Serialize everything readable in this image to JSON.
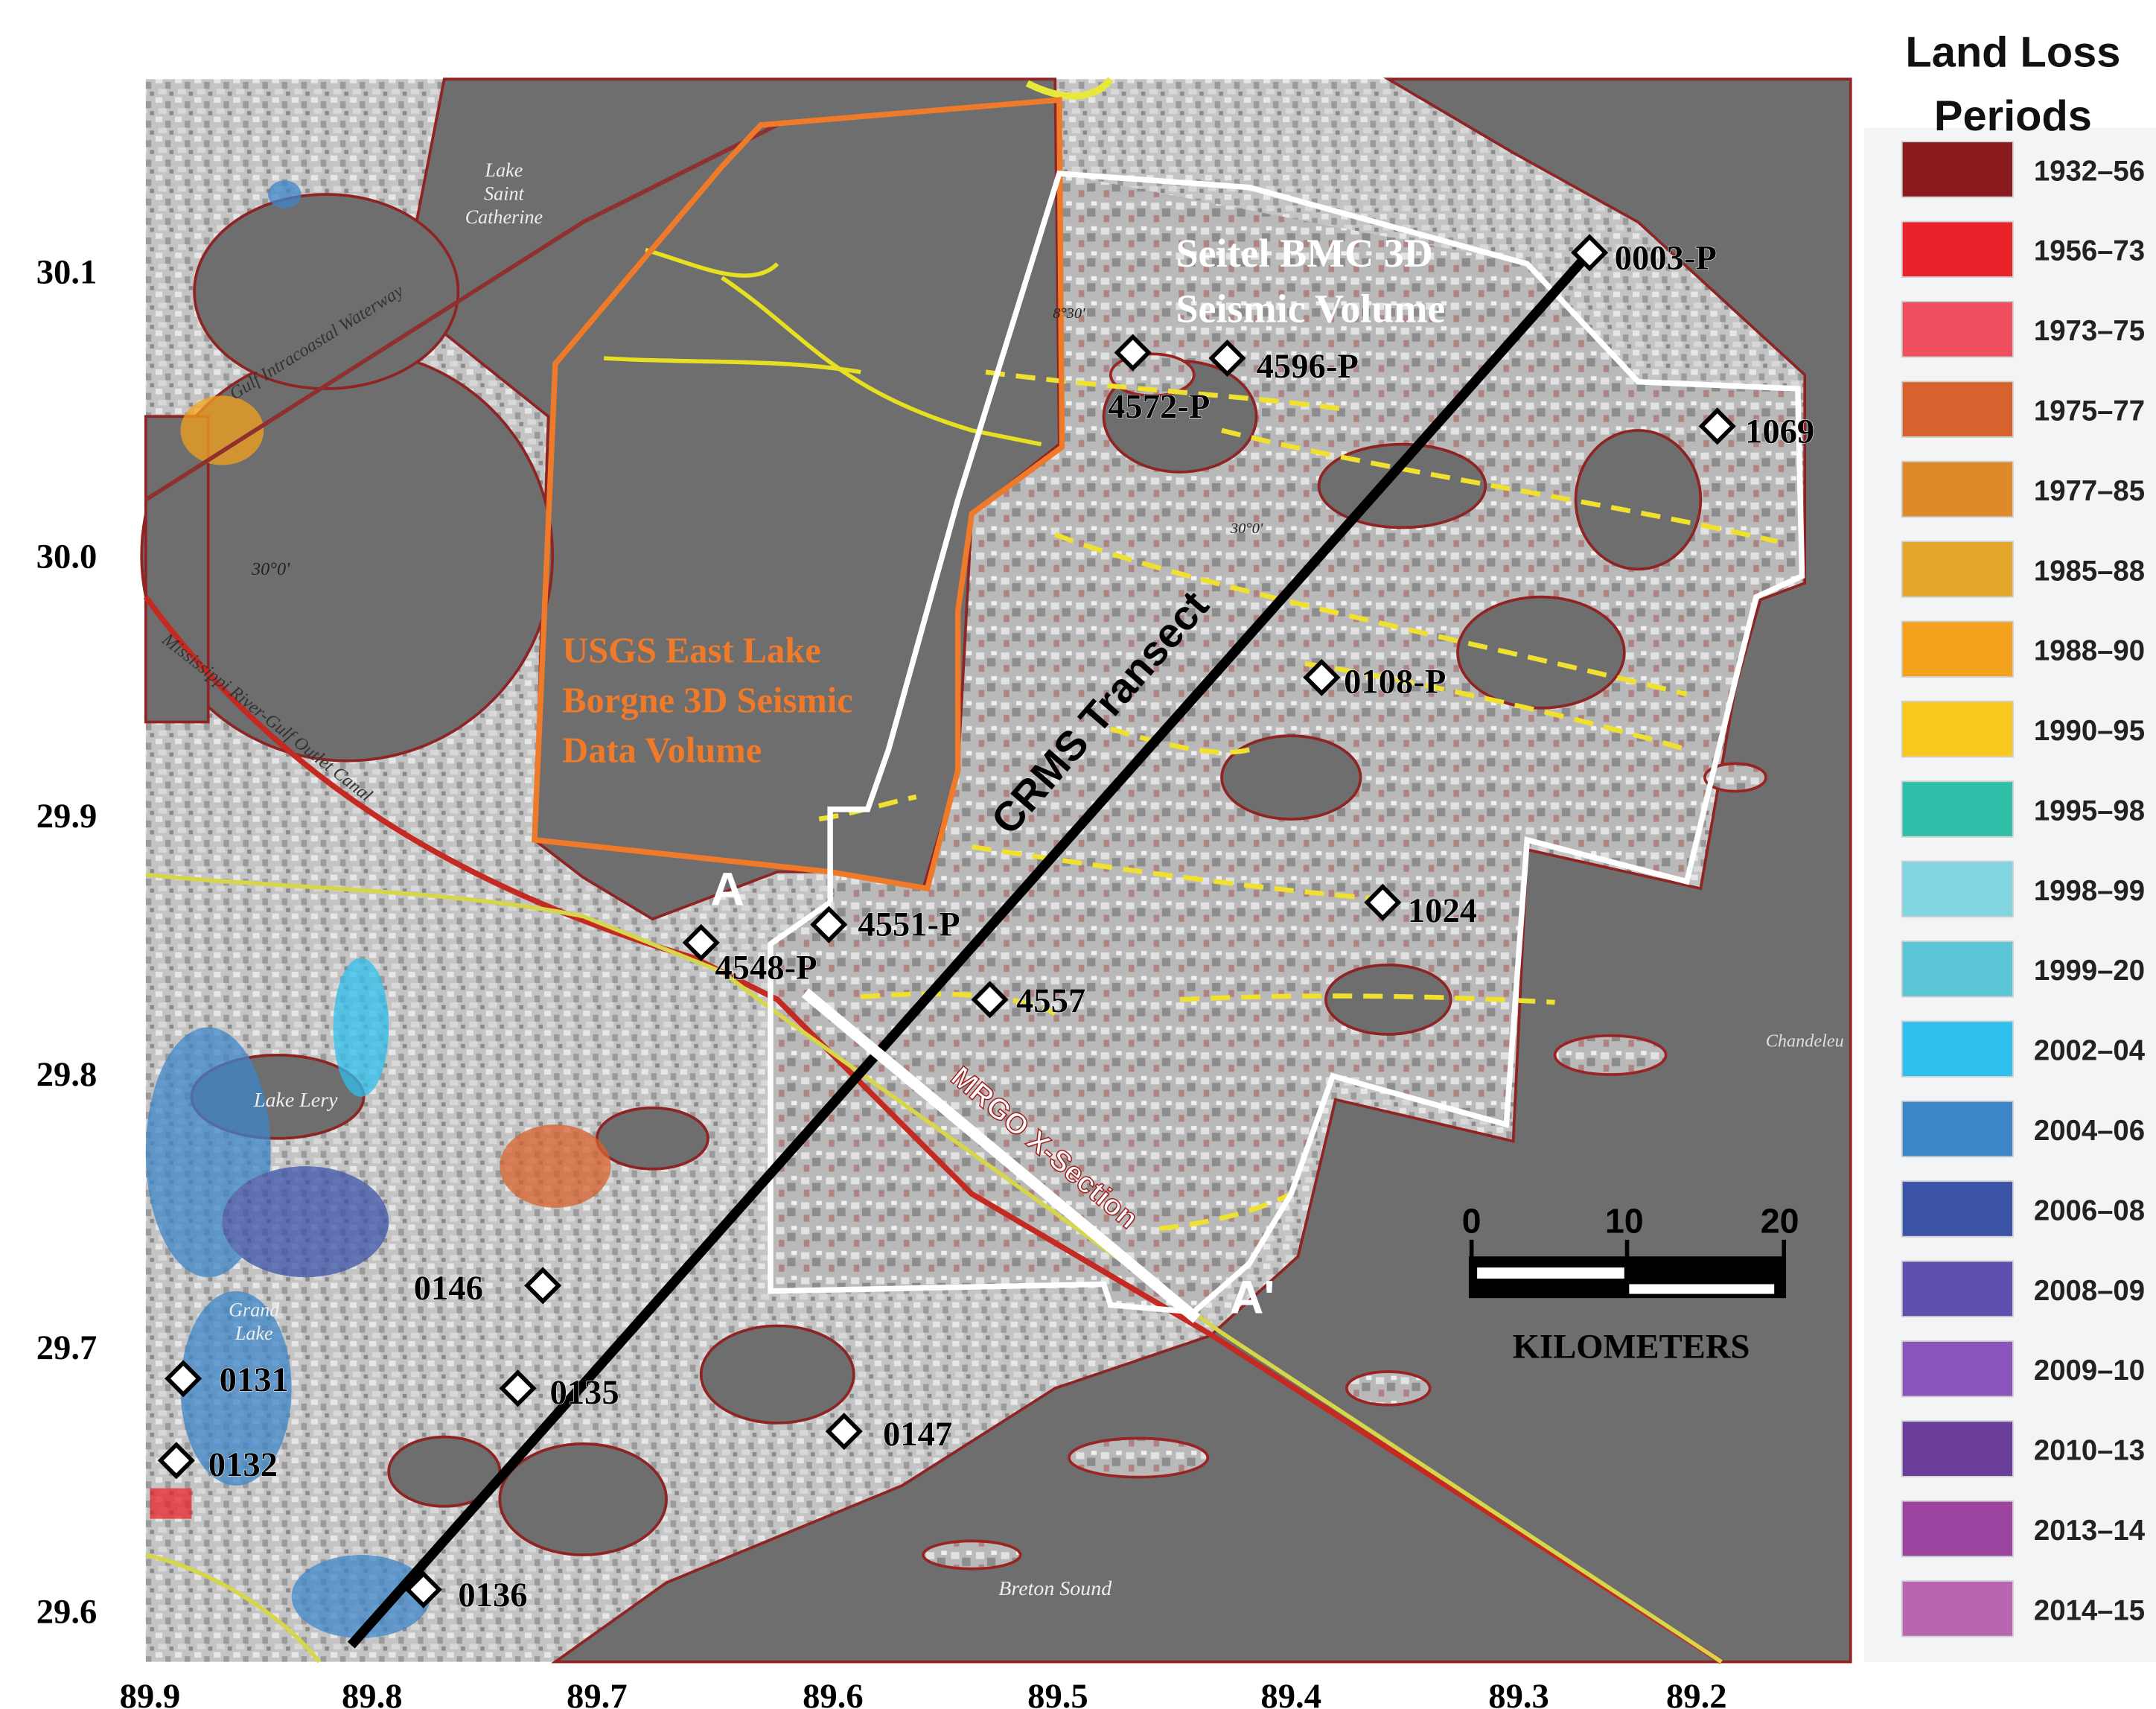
{
  "legend": {
    "title": [
      "Land Loss",
      "Periods"
    ],
    "items": [
      {
        "label": "1932–56",
        "color": "#8b1a1e"
      },
      {
        "label": "1956–73",
        "color": "#e8242a"
      },
      {
        "label": "1973–75",
        "color": "#ee4e5e"
      },
      {
        "label": "1975–77",
        "color": "#d8622e"
      },
      {
        "label": "1977–85",
        "color": "#de8a2a"
      },
      {
        "label": "1985–88",
        "color": "#e4a62c"
      },
      {
        "label": "1988–90",
        "color": "#f4a21e"
      },
      {
        "label": "1990–95",
        "color": "#f8c81c"
      },
      {
        "label": "1995–98",
        "color": "#2fbfa8"
      },
      {
        "label": "1998–99",
        "color": "#82d4e0"
      },
      {
        "label": "1999–20",
        "color": "#5cc6d6"
      },
      {
        "label": "2002–04",
        "color": "#2fc0ee"
      },
      {
        "label": "2004–06",
        "color": "#3d86c8"
      },
      {
        "label": "2006–08",
        "color": "#3c54a8"
      },
      {
        "label": "2008–09",
        "color": "#5e50b0"
      },
      {
        "label": "2009–10",
        "color": "#8a56bc"
      },
      {
        "label": "2010–13",
        "color": "#6b3e9b"
      },
      {
        "label": "2013–14",
        "color": "#9c44a0"
      },
      {
        "label": "2014–15",
        "color": "#b866b0"
      }
    ]
  },
  "axes": {
    "latitude_labels": [
      "30.1",
      "30.0",
      "29.9",
      "29.8",
      "29.7",
      "29.6"
    ],
    "longitude_labels": [
      "89.9",
      "89.8",
      "89.7",
      "89.6",
      "89.5",
      "89.4",
      "89.3",
      "89.2"
    ]
  },
  "stations": [
    "0003-P",
    "4596-P",
    "4572-P",
    "1069",
    "0108-P",
    "1024",
    "4551-P",
    "4548-P",
    "4557",
    "0146",
    "0131",
    "0135",
    "0147",
    "0132",
    "0136"
  ],
  "transects": {
    "crms": "CRMS Transect",
    "mrgo": "MRGO X-Section",
    "start": "A",
    "end": "A'"
  },
  "survey_areas": {
    "seitel": [
      "Seitel BMC 3D",
      "Seismic Volume"
    ],
    "usgs": [
      "USGS East Lake",
      "Borgne 3D Seismic",
      "Data Volume"
    ]
  },
  "place_names": [
    {
      "lines": [
        "Lake",
        "Saint",
        "Catherine"
      ]
    },
    {
      "lines": [
        "Lake Lery"
      ]
    },
    {
      "lines": [
        "Grand",
        "Lake"
      ]
    },
    {
      "lines": [
        "Breton Sound"
      ]
    },
    {
      "lines": [
        "Chandeleu"
      ]
    },
    {
      "lines": [
        "Mississippi River-Gulf Outlet Canal"
      ]
    },
    {
      "lines": [
        "Gulf Intracoastal Waterway"
      ]
    },
    {
      "lines": [
        "30°0'"
      ]
    },
    {
      "lines": [
        "30°0'"
      ]
    },
    {
      "lines": [
        "8°30'"
      ]
    }
  ],
  "scale_bar": {
    "ticks": [
      "0",
      "10",
      "20"
    ],
    "unit": "KILOMETERS"
  }
}
